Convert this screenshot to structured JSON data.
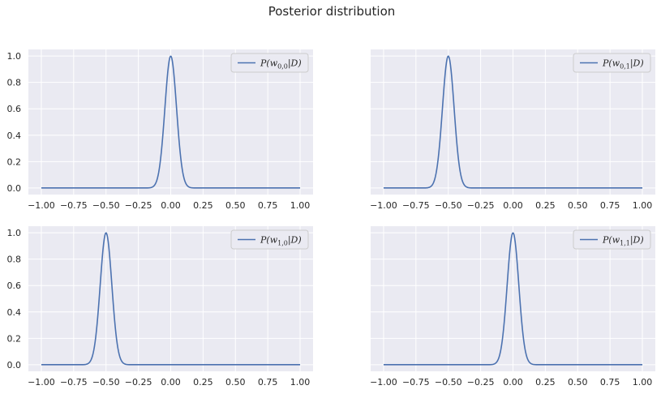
{
  "figure": {
    "suptitle": "Posterior distribution"
  },
  "colors": {
    "axes_bg": "#EAEAF2",
    "grid": "#FFFFFF",
    "line": "#4C72B0",
    "text": "#262626",
    "legend_border": "#CCCCCC"
  },
  "chart_data": [
    {
      "type": "line",
      "panel": "top-left",
      "title": "",
      "xlabel": "",
      "ylabel": "",
      "xlim": [
        -1.1,
        1.1
      ],
      "ylim": [
        -0.05,
        1.05
      ],
      "xticks": [
        -1.0,
        -0.75,
        -0.5,
        -0.25,
        0.0,
        0.25,
        0.5,
        0.75,
        1.0
      ],
      "xtick_labels": [
        "−1.00",
        "−0.75",
        "−0.50",
        "−0.25",
        "0.00",
        "0.25",
        "0.50",
        "0.75",
        "1.00"
      ],
      "yticks": [
        0.0,
        0.2,
        0.4,
        0.6,
        0.8,
        1.0
      ],
      "ytick_labels": [
        "0.0",
        "0.2",
        "0.4",
        "0.6",
        "0.8",
        "1.0"
      ],
      "show_yticklabels": true,
      "grid": true,
      "legend": "top-right",
      "legend_label": {
        "sub": "0,0",
        "text": "P(w0,0|D)"
      },
      "series": [
        {
          "name": "P(w0,0|D)",
          "x_range": [
            -1.0,
            1.0
          ],
          "points": 400,
          "peak_x": 0.0,
          "sigma": 0.045,
          "peak_y": 1.0
        }
      ]
    },
    {
      "type": "line",
      "panel": "top-right",
      "title": "",
      "xlabel": "",
      "ylabel": "",
      "xlim": [
        -1.1,
        1.1
      ],
      "ylim": [
        -0.05,
        1.05
      ],
      "xticks": [
        -1.0,
        -0.75,
        -0.5,
        -0.25,
        0.0,
        0.25,
        0.5,
        0.75,
        1.0
      ],
      "xtick_labels": [
        "−1.00",
        "−0.75",
        "−0.50",
        "−0.25",
        "0.00",
        "0.25",
        "0.50",
        "0.75",
        "1.00"
      ],
      "yticks": [
        0.0,
        0.2,
        0.4,
        0.6,
        0.8,
        1.0
      ],
      "ytick_labels": [
        "0.0",
        "0.2",
        "0.4",
        "0.6",
        "0.8",
        "1.0"
      ],
      "show_yticklabels": false,
      "grid": true,
      "legend": "top-right",
      "legend_label": {
        "sub": "0,1",
        "text": "P(w0,1|D)"
      },
      "series": [
        {
          "name": "P(w0,1|D)",
          "x_range": [
            -1.0,
            1.0
          ],
          "points": 400,
          "peak_x": -0.5,
          "sigma": 0.045,
          "peak_y": 1.0
        }
      ]
    },
    {
      "type": "line",
      "panel": "bottom-left",
      "title": "",
      "xlabel": "",
      "ylabel": "",
      "xlim": [
        -1.1,
        1.1
      ],
      "ylim": [
        -0.05,
        1.05
      ],
      "xticks": [
        -1.0,
        -0.75,
        -0.5,
        -0.25,
        0.0,
        0.25,
        0.5,
        0.75,
        1.0
      ],
      "xtick_labels": [
        "−1.00",
        "−0.75",
        "−0.50",
        "−0.25",
        "0.00",
        "0.25",
        "0.50",
        "0.75",
        "1.00"
      ],
      "yticks": [
        0.0,
        0.2,
        0.4,
        0.6,
        0.8,
        1.0
      ],
      "ytick_labels": [
        "0.0",
        "0.2",
        "0.4",
        "0.6",
        "0.8",
        "1.0"
      ],
      "show_yticklabels": true,
      "grid": true,
      "legend": "top-right",
      "legend_label": {
        "sub": "1,0",
        "text": "P(w1,0|D)"
      },
      "series": [
        {
          "name": "P(w1,0|D)",
          "x_range": [
            -1.0,
            1.0
          ],
          "points": 400,
          "peak_x": -0.5,
          "sigma": 0.045,
          "peak_y": 1.0
        }
      ]
    },
    {
      "type": "line",
      "panel": "bottom-right",
      "title": "",
      "xlabel": "",
      "ylabel": "",
      "xlim": [
        -1.1,
        1.1
      ],
      "ylim": [
        -0.05,
        1.05
      ],
      "xticks": [
        -1.0,
        -0.75,
        -0.5,
        -0.25,
        0.0,
        0.25,
        0.5,
        0.75,
        1.0
      ],
      "xtick_labels": [
        "−1.00",
        "−0.75",
        "−0.50",
        "−0.25",
        "0.00",
        "0.25",
        "0.50",
        "0.75",
        "1.00"
      ],
      "yticks": [
        0.0,
        0.2,
        0.4,
        0.6,
        0.8,
        1.0
      ],
      "ytick_labels": [
        "0.0",
        "0.2",
        "0.4",
        "0.6",
        "0.8",
        "1.0"
      ],
      "show_yticklabels": false,
      "grid": true,
      "legend": "top-right",
      "legend_label": {
        "sub": "1,1",
        "text": "P(w1,1|D)"
      },
      "series": [
        {
          "name": "P(w1,1|D)",
          "x_range": [
            -1.0,
            1.0
          ],
          "points": 400,
          "peak_x": 0.0,
          "sigma": 0.045,
          "peak_y": 1.0
        }
      ]
    }
  ]
}
